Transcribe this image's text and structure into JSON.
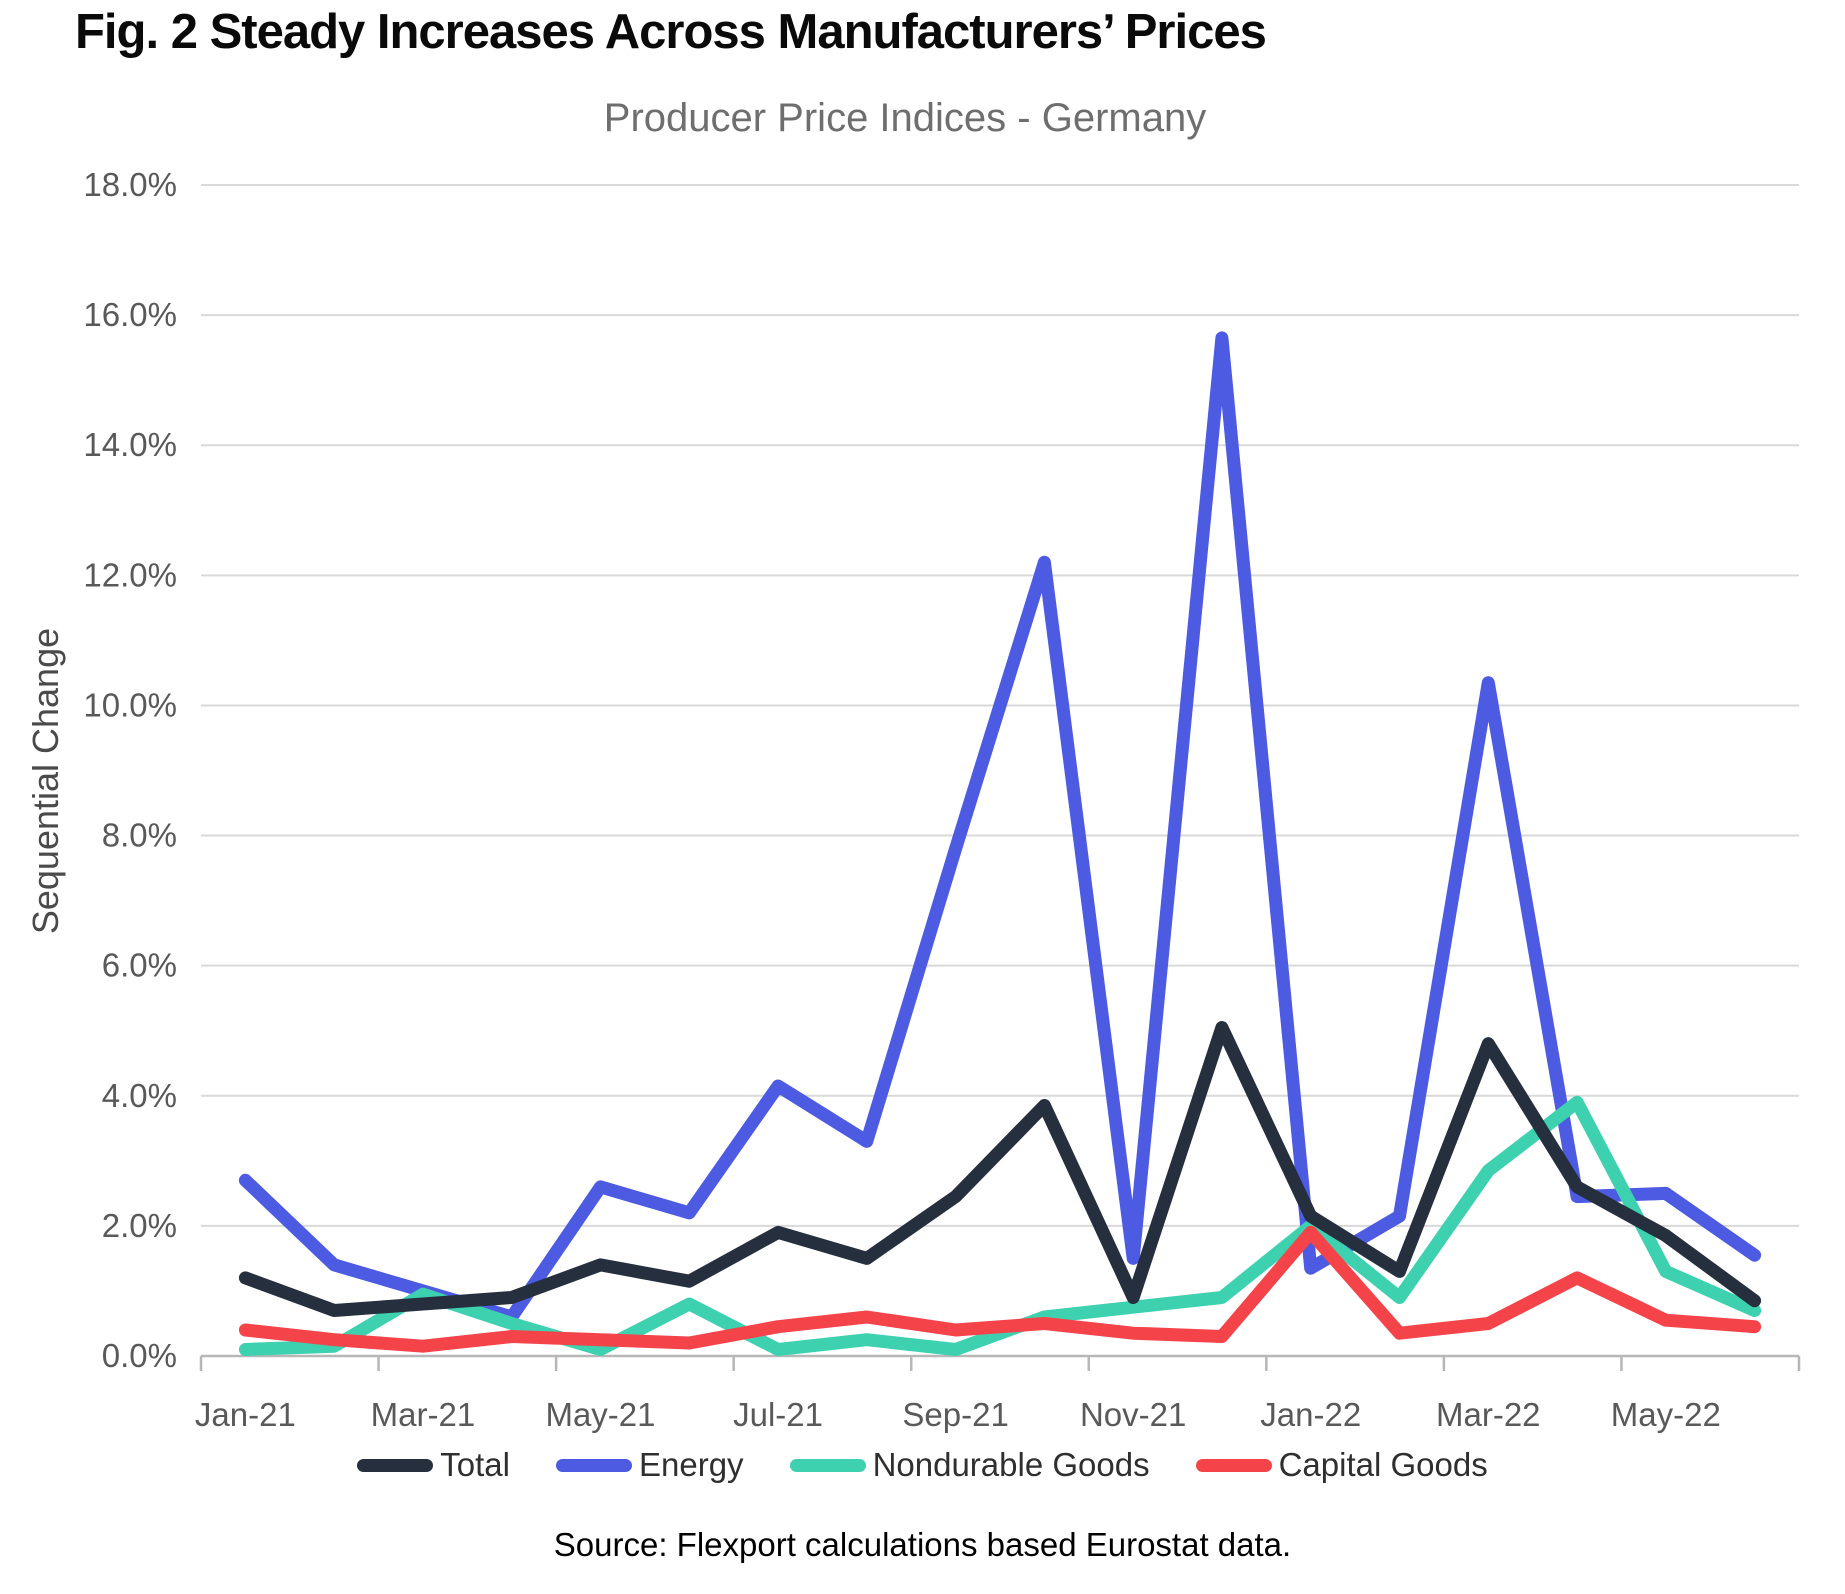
{
  "figure": {
    "title": "Fig. 2 Steady Increases Across Manufacturers’ Prices",
    "subtitle": "Producer Price Indices - Germany",
    "source": "Source: Flexport calculations based Eurostat data."
  },
  "colors": {
    "total": "#262f3e",
    "energy": "#4c5be2",
    "nondurable": "#3dd1b0",
    "capital": "#f4444a",
    "gridline": "#d9d9d9",
    "axis_line": "#b7b7b7",
    "axis_text": "#595959",
    "legend_text": "#2f2f2f"
  },
  "chart_data": {
    "type": "line",
    "title": "Producer Price Indices - Germany",
    "xlabel": "",
    "ylabel": "Sequential Change",
    "ylim": [
      0,
      18
    ],
    "grid": true,
    "legend_position": "bottom",
    "x": [
      "Jan-21",
      "Feb-21",
      "Mar-21",
      "Apr-21",
      "May-21",
      "Jun-21",
      "Jul-21",
      "Aug-21",
      "Sep-21",
      "Oct-21",
      "Nov-21",
      "Dec-21",
      "Jan-22",
      "Feb-22",
      "Mar-22",
      "Apr-22",
      "May-22",
      "Jun-22"
    ],
    "x_tick_labels": [
      "Jan-21",
      "Mar-21",
      "May-21",
      "Jul-21",
      "Sep-21",
      "Nov-21",
      "Jan-22",
      "Mar-22",
      "May-22"
    ],
    "y_ticks": [
      "0.0%",
      "2.0%",
      "4.0%",
      "6.0%",
      "8.0%",
      "10.0%",
      "12.0%",
      "14.0%",
      "16.0%",
      "18.0%"
    ],
    "unit": "percent",
    "series": [
      {
        "name": "Total",
        "color": "#262f3e",
        "values": [
          1.2,
          0.7,
          0.8,
          0.9,
          1.4,
          1.15,
          1.9,
          1.5,
          2.45,
          3.85,
          0.9,
          5.05,
          2.15,
          1.3,
          4.8,
          2.6,
          1.85,
          0.85
        ]
      },
      {
        "name": "Energy",
        "color": "#4c5be2",
        "values": [
          2.7,
          1.4,
          1.0,
          0.6,
          2.6,
          2.2,
          4.15,
          3.3,
          7.8,
          12.2,
          1.5,
          15.65,
          1.35,
          2.15,
          10.35,
          2.45,
          2.5,
          1.55
        ]
      },
      {
        "name": "Nondurable Goods",
        "color": "#3dd1b0",
        "values": [
          0.1,
          0.15,
          0.95,
          0.5,
          0.1,
          0.8,
          0.1,
          0.25,
          0.1,
          0.6,
          0.75,
          0.9,
          2.0,
          0.9,
          2.85,
          3.9,
          1.3,
          0.7
        ]
      },
      {
        "name": "Capital Goods",
        "color": "#f4444a",
        "values": [
          0.4,
          0.25,
          0.15,
          0.3,
          0.25,
          0.2,
          0.45,
          0.6,
          0.4,
          0.5,
          0.35,
          0.3,
          1.9,
          0.35,
          0.5,
          1.2,
          0.55,
          0.45
        ]
      }
    ]
  }
}
